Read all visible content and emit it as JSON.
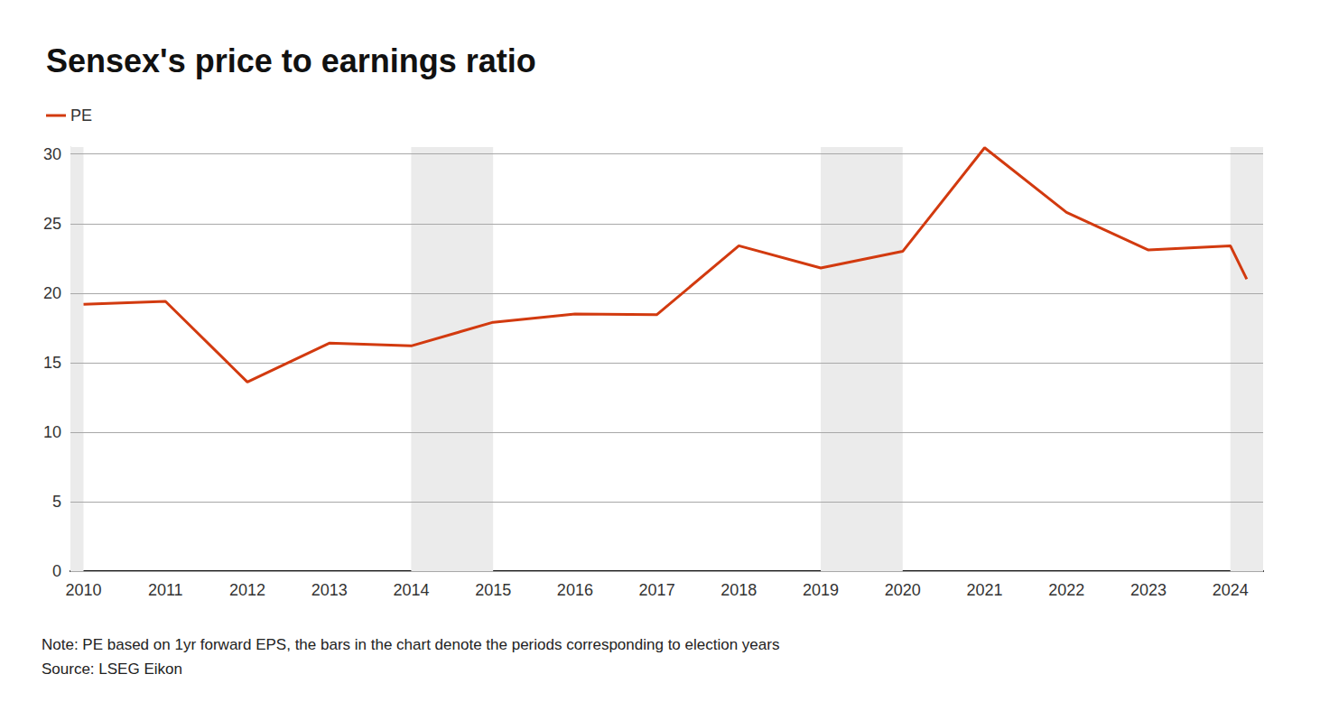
{
  "chart_data": {
    "type": "line",
    "title": "Sensex's price to earnings ratio",
    "note": "Note: PE based on 1yr forward EPS, the bars in the chart denote the periods corresponding to election years",
    "source": "Source: LSEG Eikon",
    "x": [
      2010,
      2011,
      2012,
      2013,
      2014,
      2015,
      2016,
      2017,
      2018,
      2019,
      2020,
      2021,
      2022,
      2023,
      2024,
      2024.2
    ],
    "series": [
      {
        "name": "PE",
        "color": "#d23a0f",
        "values": [
          19.2,
          19.4,
          13.6,
          16.4,
          16.2,
          17.9,
          18.5,
          18.45,
          23.4,
          21.8,
          23.0,
          30.45,
          25.8,
          23.1,
          23.4,
          21.0
        ]
      }
    ],
    "election_periods": [
      [
        2009.84,
        2010
      ],
      [
        2014,
        2015
      ],
      [
        2019,
        2020
      ],
      [
        2024,
        2024.4
      ]
    ],
    "xlim": [
      2009.84,
      2024.4
    ],
    "xticks": [
      2010,
      2011,
      2012,
      2013,
      2014,
      2015,
      2016,
      2017,
      2018,
      2019,
      2020,
      2021,
      2022,
      2023,
      2024
    ],
    "ylim": [
      0,
      30.5
    ],
    "yticks": [
      0,
      5,
      10,
      15,
      20,
      25,
      30
    ],
    "grid": true,
    "legend": "top-left"
  }
}
